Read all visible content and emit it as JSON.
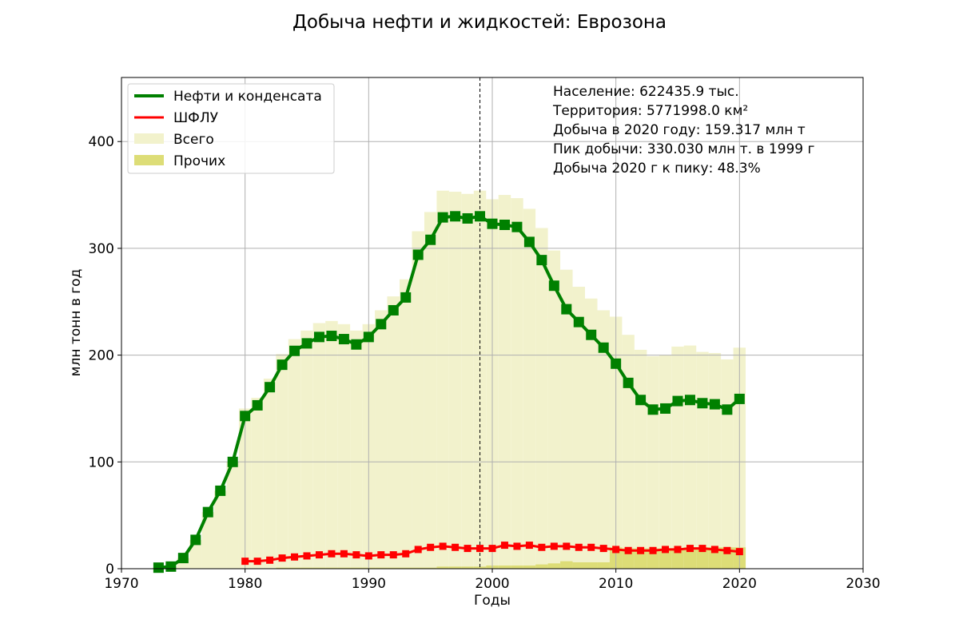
{
  "chart_data": {
    "type": "line",
    "title": "Добыча нефти и жидкостей: Еврозона",
    "xlabel": "Годы",
    "ylabel": "млн тонн в год",
    "xlim": [
      1970,
      2030
    ],
    "ylim": [
      0,
      460
    ],
    "xticks": [
      1970,
      1980,
      1990,
      2000,
      2010,
      2020,
      2030
    ],
    "yticks": [
      0,
      100,
      200,
      300,
      400
    ],
    "grid": true,
    "legend_position": "top-left",
    "peak_year_marker": 1999,
    "info_lines": [
      "Население: 622435.9 тыс.",
      "Территория: 5771998.0 км²",
      "Добыча в 2020 году: 159.317 млн т",
      "Пик добычи: 330.030 млн т. в 1999 г",
      "Добыча 2020 г к пику: 48.3%"
    ],
    "series": [
      {
        "name": "Нефти и конденсата",
        "kind": "line",
        "color": "#008000",
        "x": [
          1973,
          1974,
          1975,
          1976,
          1977,
          1978,
          1979,
          1980,
          1981,
          1982,
          1983,
          1984,
          1985,
          1986,
          1987,
          1988,
          1989,
          1990,
          1991,
          1992,
          1993,
          1994,
          1995,
          1996,
          1997,
          1998,
          1999,
          2000,
          2001,
          2002,
          2003,
          2004,
          2005,
          2006,
          2007,
          2008,
          2009,
          2010,
          2011,
          2012,
          2013,
          2014,
          2015,
          2016,
          2017,
          2018,
          2019,
          2020
        ],
        "values": [
          1,
          2,
          10,
          27,
          53,
          73,
          100,
          143,
          153,
          170,
          191,
          204,
          211,
          217,
          218,
          215,
          210,
          217,
          229,
          242,
          254,
          294,
          308,
          329,
          330,
          328,
          330,
          323,
          322,
          320,
          306,
          289,
          265,
          243,
          231,
          219,
          207,
          192,
          174,
          158,
          149,
          150,
          157,
          158,
          155,
          154,
          149,
          159
        ]
      },
      {
        "name": "ШФЛУ",
        "kind": "line",
        "color": "#ff0000",
        "x": [
          1980,
          1981,
          1982,
          1983,
          1984,
          1985,
          1986,
          1987,
          1988,
          1989,
          1990,
          1991,
          1992,
          1993,
          1994,
          1995,
          1996,
          1997,
          1998,
          1999,
          2000,
          2001,
          2002,
          2003,
          2004,
          2005,
          2006,
          2007,
          2008,
          2009,
          2010,
          2011,
          2012,
          2013,
          2014,
          2015,
          2016,
          2017,
          2018,
          2019,
          2020
        ],
        "values": [
          7,
          7,
          8,
          10,
          11,
          12,
          13,
          14,
          14,
          13,
          12,
          13,
          13,
          14,
          18,
          20,
          21,
          20,
          19,
          19,
          19,
          22,
          21,
          22,
          20,
          21,
          21,
          20,
          20,
          19,
          18,
          17,
          17,
          17,
          18,
          18,
          19,
          19,
          18,
          17,
          16
        ]
      },
      {
        "name": "Всего",
        "kind": "bar",
        "color": "#f2f2cc",
        "x": [
          1973,
          1974,
          1975,
          1976,
          1977,
          1978,
          1979,
          1980,
          1981,
          1982,
          1983,
          1984,
          1985,
          1986,
          1987,
          1988,
          1989,
          1990,
          1991,
          1992,
          1993,
          1994,
          1995,
          1996,
          1997,
          1998,
          1999,
          2000,
          2001,
          2002,
          2003,
          2004,
          2005,
          2006,
          2007,
          2008,
          2009,
          2010,
          2011,
          2012,
          2013,
          2014,
          2015,
          2016,
          2017,
          2018,
          2019,
          2020
        ],
        "values": [
          1,
          2,
          10,
          27,
          53,
          73,
          100,
          150,
          160,
          178,
          201,
          215,
          223,
          230,
          232,
          229,
          223,
          229,
          242,
          255,
          271,
          316,
          334,
          354,
          353,
          351,
          354,
          346,
          350,
          347,
          337,
          319,
          298,
          280,
          264,
          253,
          242,
          236,
          219,
          205,
          199,
          200,
          208,
          209,
          203,
          202,
          196,
          207
        ]
      },
      {
        "name": "Прочих",
        "kind": "bar",
        "color": "#dddd77",
        "x": [
          1980,
          1981,
          1982,
          1983,
          1984,
          1985,
          1986,
          1987,
          1988,
          1989,
          1990,
          1991,
          1992,
          1993,
          1994,
          1995,
          1996,
          1997,
          1998,
          1999,
          2000,
          2001,
          2002,
          2003,
          2004,
          2005,
          2006,
          2007,
          2008,
          2009,
          2010,
          2011,
          2012,
          2013,
          2014,
          2015,
          2016,
          2017,
          2018,
          2019,
          2020
        ],
        "values": [
          0,
          0,
          0,
          1,
          1,
          1,
          1,
          1,
          1,
          1,
          1,
          1,
          1,
          1,
          1,
          1,
          2,
          2,
          2,
          2,
          3,
          3,
          3,
          3,
          4,
          5,
          7,
          6,
          6,
          6,
          20,
          19,
          19,
          19,
          19,
          19,
          20,
          20,
          20,
          20,
          20
        ]
      }
    ]
  }
}
